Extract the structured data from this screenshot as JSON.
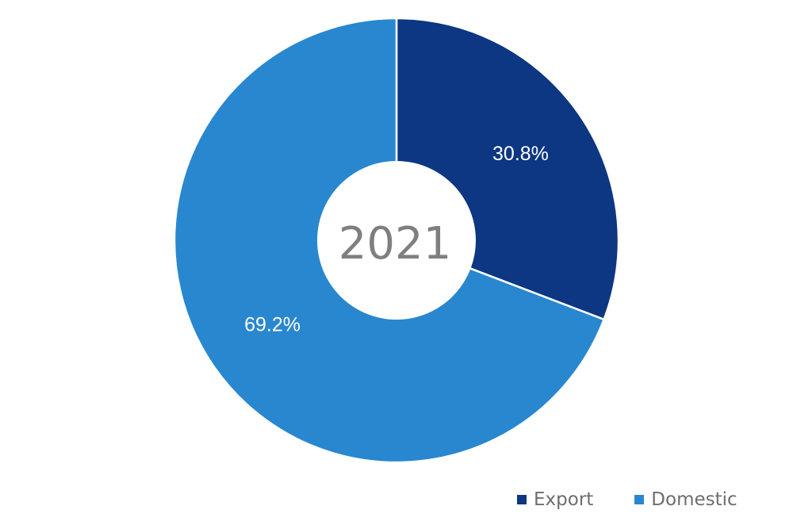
{
  "chart_data": {
    "type": "pie",
    "variant": "donut",
    "center_label": "2021",
    "categories": [
      "Export",
      "Domestic"
    ],
    "values": [
      30.8,
      69.2
    ],
    "labels": [
      "30.8%",
      "69.2%"
    ],
    "colors": [
      "#0d3683",
      "#2887cf"
    ],
    "slice_border_color": "#ffffff",
    "start_angle_deg": 0,
    "direction": "clockwise",
    "legend": {
      "position": "bottom-right",
      "entries": [
        {
          "label": "Export",
          "color": "#0d3683"
        },
        {
          "label": "Domestic",
          "color": "#2887cf"
        }
      ]
    }
  }
}
